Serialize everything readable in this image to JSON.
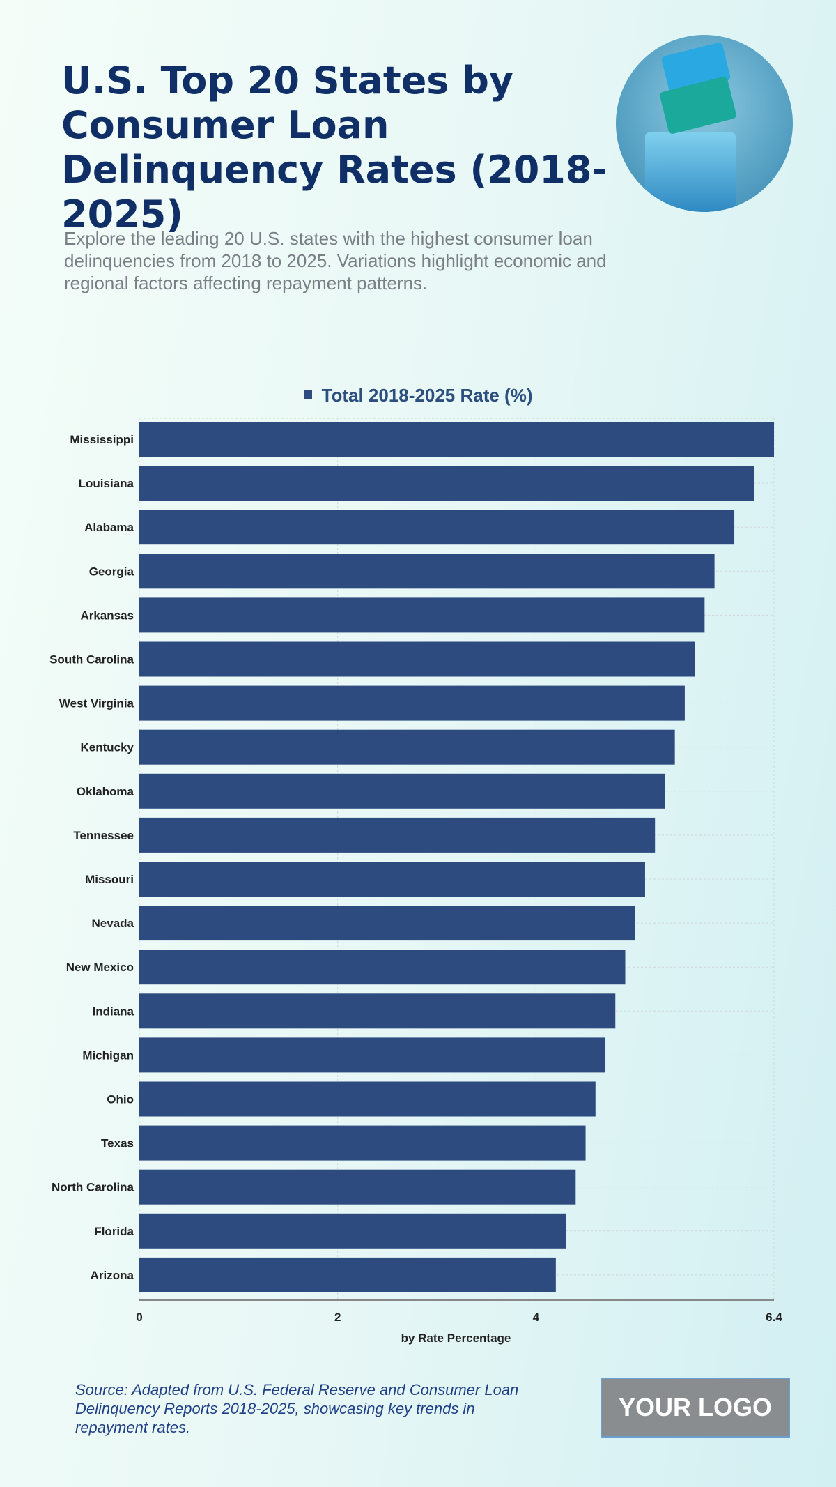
{
  "header": {
    "title": "U.S. Top 20 States by Consumer Loan Delinquency Rates (2018-2025)",
    "subtitle": "Explore the leading 20 U.S. states with the highest consumer loan delinquencies from 2018 to 2025. Variations highlight economic and regional factors affecting repayment patterns."
  },
  "chart_data": {
    "type": "bar",
    "orientation": "horizontal",
    "categories": [
      "Mississippi",
      "Louisiana",
      "Alabama",
      "Georgia",
      "Arkansas",
      "South Carolina",
      "West Virginia",
      "Kentucky",
      "Oklahoma",
      "Tennessee",
      "Missouri",
      "Nevada",
      "New Mexico",
      "Indiana",
      "Michigan",
      "Ohio",
      "Texas",
      "North Carolina",
      "Florida",
      "Arizona"
    ],
    "series": [
      {
        "name": "Total 2018-2025 Rate (%)",
        "values": [
          6.4,
          6.2,
          6.0,
          5.8,
          5.7,
          5.6,
          5.5,
          5.4,
          5.3,
          5.2,
          5.1,
          5.0,
          4.9,
          4.8,
          4.7,
          4.6,
          4.5,
          4.4,
          4.3,
          4.2
        ],
        "color": "#2d4b7e"
      }
    ],
    "xlabel": "by Rate Percentage",
    "xlim": [
      0,
      6.4
    ],
    "xticks": [
      "0",
      "2",
      "4",
      "6.4"
    ],
    "xtick_values": [
      0,
      2,
      4,
      6.4
    ],
    "grid": true,
    "legend_position": "top-center"
  },
  "footer": {
    "source": "Source: Adapted from U.S. Federal Reserve and Consumer Loan Delinquency Reports 2018-2025, showcasing key trends in repayment rates.",
    "logo": "YOUR LOGO"
  }
}
